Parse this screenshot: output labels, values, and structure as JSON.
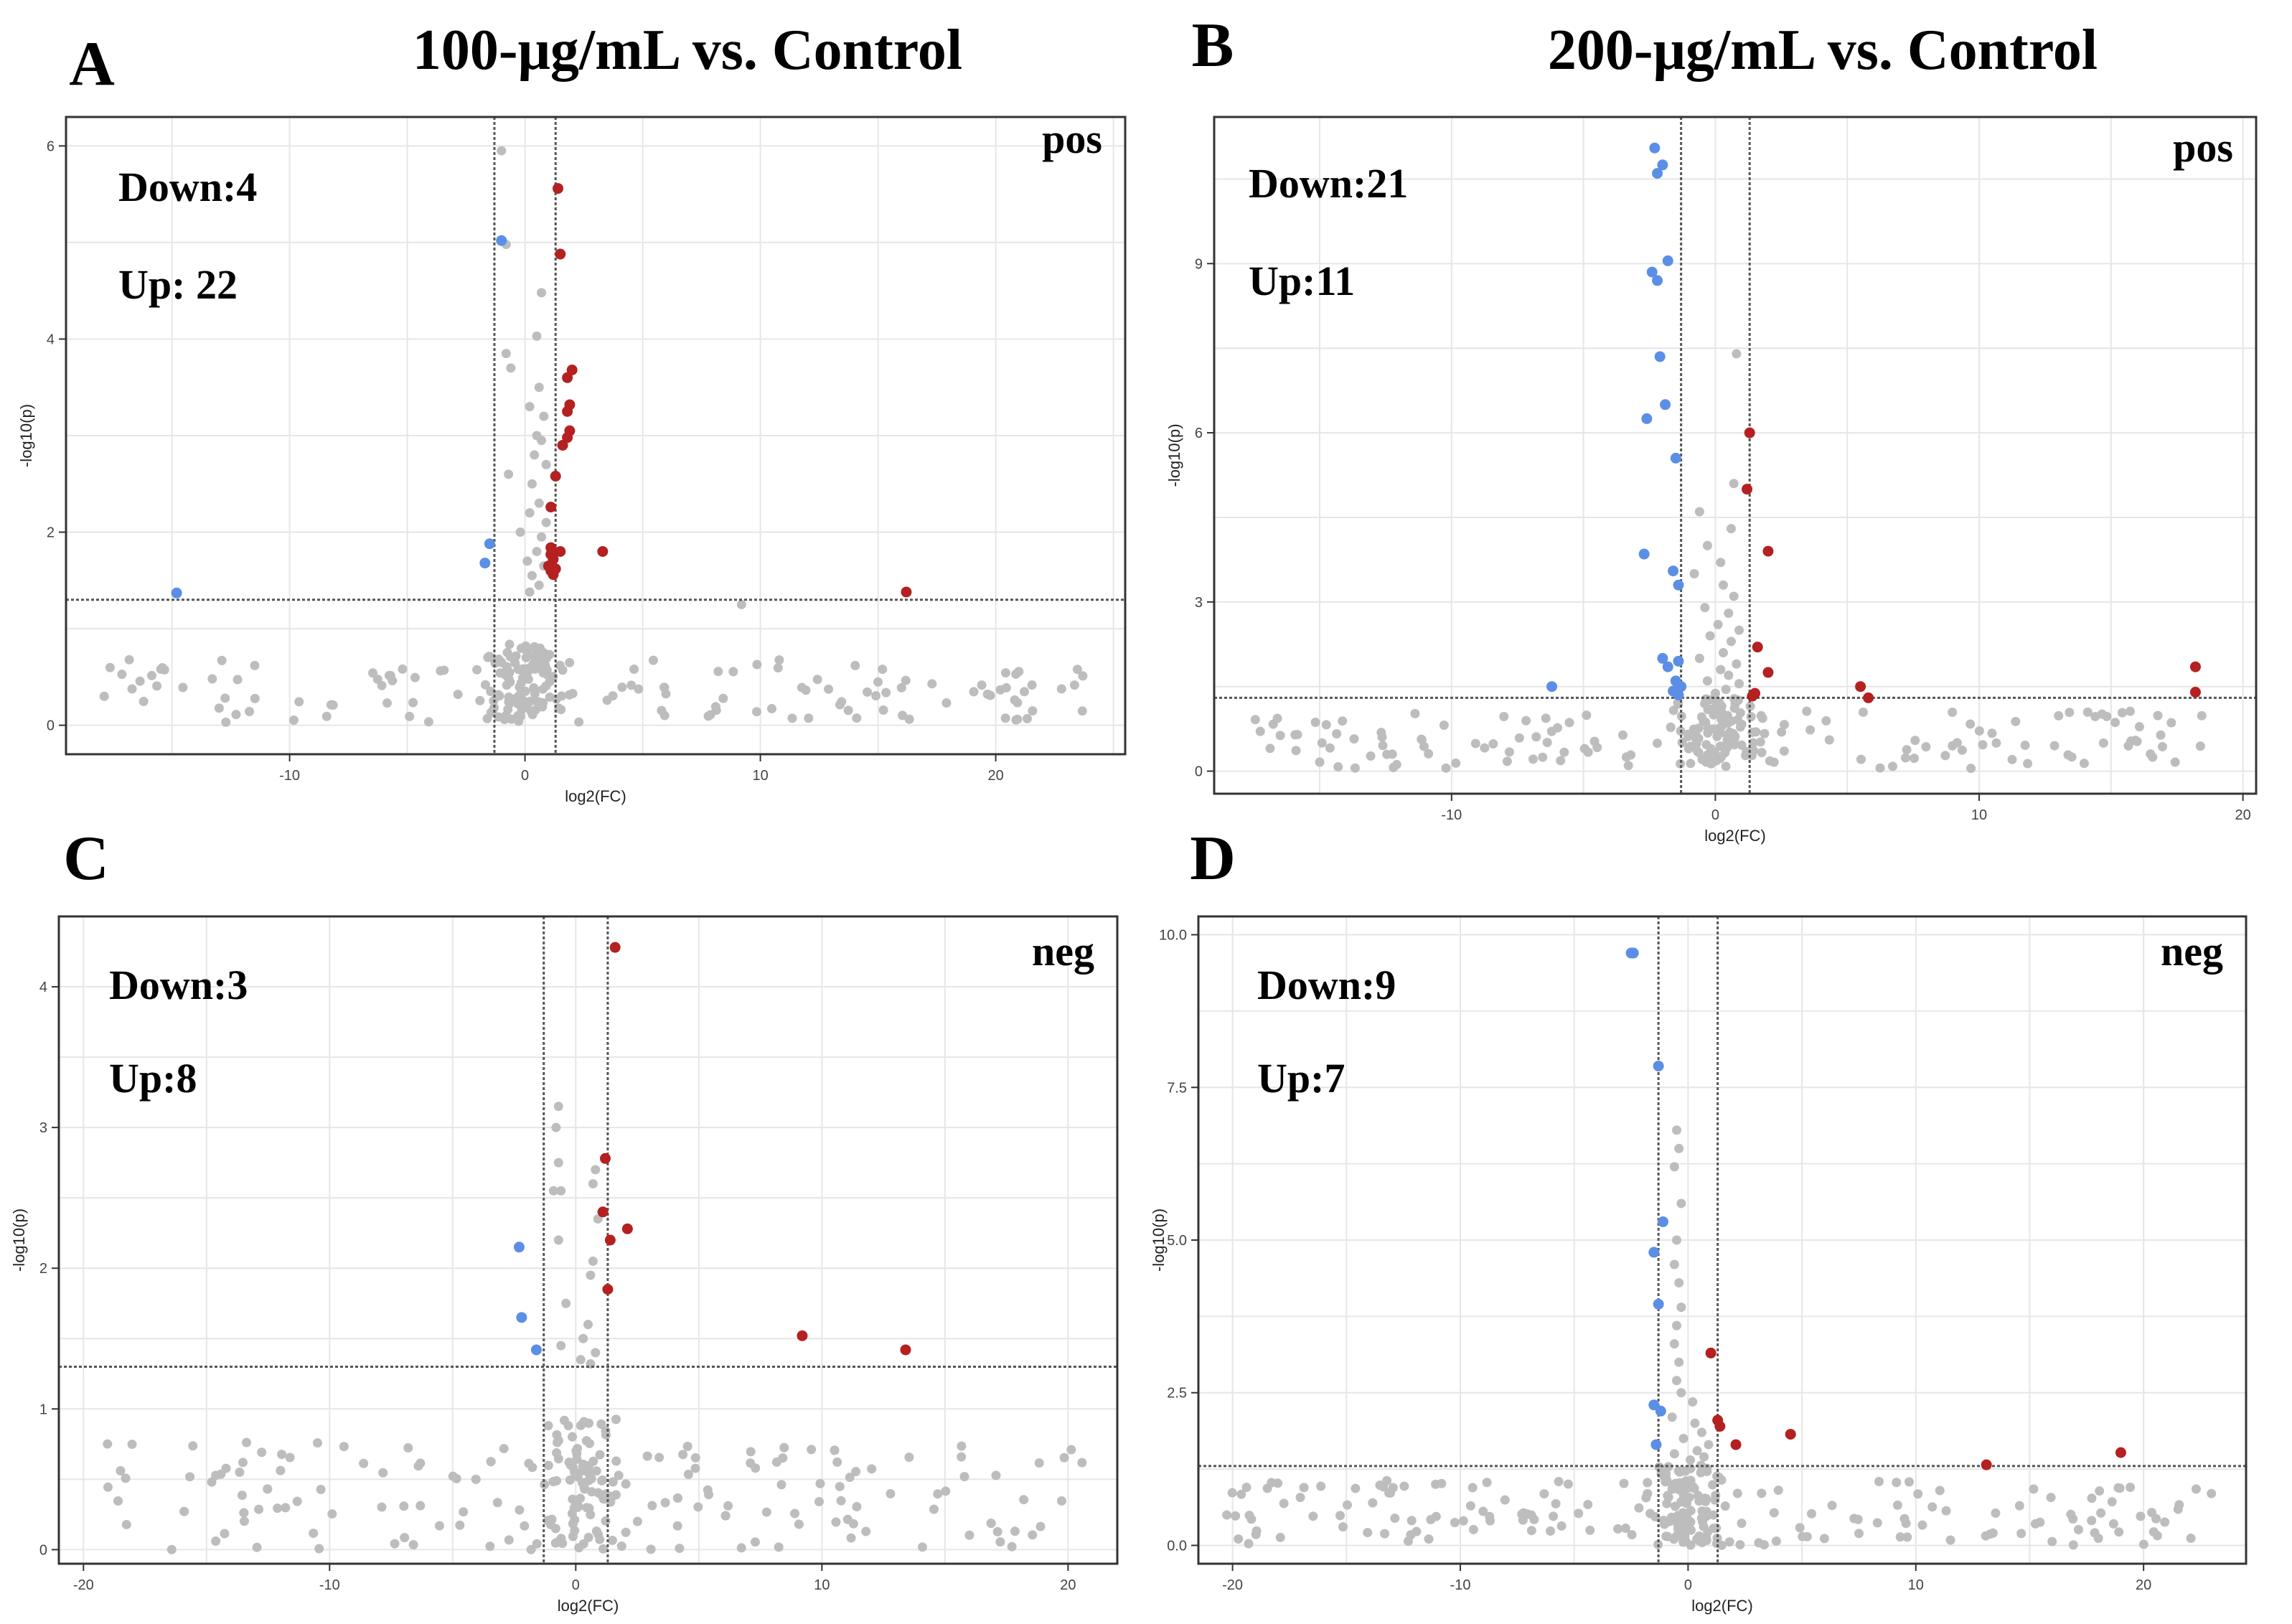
{
  "colors": {
    "down": "#5b8fe6",
    "up": "#b52020",
    "ns": "#bdbdbd",
    "grid": "#e6e6e6",
    "frame": "#333333",
    "threshold": "#555555"
  },
  "chart_data": [
    {
      "type": "scatter",
      "panel_letter": "A",
      "title": "100-μg/mL vs. Control",
      "mode_label": "pos",
      "down_text": "Down:4",
      "up_text": "Up: 22",
      "xlabel": "log2(FC)",
      "ylabel": "-log10(p)",
      "xlim": [
        -19.5,
        25.5
      ],
      "ylim": [
        -0.3,
        6.3
      ],
      "xticks": [
        -10,
        0,
        10,
        20
      ],
      "yticks": [
        0,
        2,
        4,
        6
      ],
      "ytick_labels": [
        "0",
        "2",
        "4",
        "6"
      ],
      "fc_threshold": [
        -1.3,
        1.3
      ],
      "p_threshold": 1.3,
      "ns_count": 230,
      "ns_seed": 11,
      "ns_y_below": [
        0.03,
        0.8
      ],
      "down_points": [
        [
          -14.8,
          1.37
        ],
        [
          -1.0,
          5.02
        ],
        [
          -1.5,
          1.88
        ],
        [
          -1.7,
          1.68
        ]
      ],
      "up_points": [
        [
          1.4,
          5.56
        ],
        [
          1.5,
          4.88
        ],
        [
          2.0,
          3.68
        ],
        [
          1.8,
          3.6
        ],
        [
          1.9,
          3.32
        ],
        [
          1.8,
          3.25
        ],
        [
          1.9,
          3.05
        ],
        [
          1.8,
          2.98
        ],
        [
          1.6,
          2.9
        ],
        [
          1.3,
          2.58
        ],
        [
          1.1,
          2.26
        ],
        [
          1.1,
          1.84
        ],
        [
          1.2,
          1.8
        ],
        [
          1.5,
          1.8
        ],
        [
          1.1,
          1.77
        ],
        [
          1.2,
          1.72
        ],
        [
          1.0,
          1.65
        ],
        [
          1.1,
          1.6
        ],
        [
          1.2,
          1.56
        ],
        [
          1.3,
          1.62
        ],
        [
          3.3,
          1.8
        ],
        [
          16.2,
          1.38
        ]
      ],
      "ns_points_above": [
        [
          -1.0,
          5.95
        ],
        [
          -0.8,
          4.98
        ],
        [
          0.7,
          4.48
        ],
        [
          0.5,
          4.03
        ],
        [
          -0.8,
          3.85
        ],
        [
          -0.6,
          3.7
        ],
        [
          0.6,
          3.5
        ],
        [
          0.2,
          3.3
        ],
        [
          0.8,
          3.2
        ],
        [
          0.5,
          3.0
        ],
        [
          0.7,
          2.95
        ],
        [
          0.4,
          2.8
        ],
        [
          -0.7,
          2.6
        ],
        [
          0.9,
          2.7
        ],
        [
          0.3,
          2.5
        ],
        [
          0.6,
          2.3
        ],
        [
          0.2,
          2.2
        ],
        [
          0.9,
          2.1
        ],
        [
          -0.2,
          2.0
        ],
        [
          0.7,
          1.95
        ],
        [
          0.5,
          1.8
        ],
        [
          0.1,
          1.7
        ],
        [
          0.8,
          1.65
        ],
        [
          0.3,
          1.55
        ],
        [
          0.6,
          1.45
        ],
        [
          0.2,
          1.38
        ],
        [
          9.2,
          1.25
        ]
      ]
    },
    {
      "type": "scatter",
      "panel_letter": "B",
      "title": "200-μg/mL vs. Control",
      "mode_label": "pos",
      "down_text": "Down:21",
      "up_text": "Up:11",
      "xlabel": "log2(FC)",
      "ylabel": "-log10(p)",
      "xlim": [
        -19.0,
        20.5
      ],
      "ylim": [
        -0.4,
        11.6
      ],
      "xticks": [
        -10,
        0,
        10,
        20
      ],
      "yticks": [
        0,
        3,
        6,
        9
      ],
      "ytick_labels": [
        "0",
        "3",
        "6",
        "9"
      ],
      "fc_threshold": [
        -1.3,
        1.3
      ],
      "p_threshold": 1.3,
      "ns_count": 230,
      "ns_seed": 23,
      "ns_y_below": [
        0.05,
        1.25
      ],
      "down_points": [
        [
          -2.3,
          11.05
        ],
        [
          -2.0,
          10.75
        ],
        [
          -2.2,
          10.6
        ],
        [
          -1.8,
          9.05
        ],
        [
          -2.4,
          8.85
        ],
        [
          -2.2,
          8.7
        ],
        [
          -2.1,
          7.35
        ],
        [
          -1.9,
          6.5
        ],
        [
          -2.6,
          6.25
        ],
        [
          -1.5,
          5.55
        ],
        [
          -2.7,
          3.85
        ],
        [
          -1.6,
          3.55
        ],
        [
          -1.4,
          3.3
        ],
        [
          -6.2,
          1.5
        ],
        [
          -2.0,
          2.0
        ],
        [
          -1.4,
          1.95
        ],
        [
          -1.8,
          1.85
        ],
        [
          -1.5,
          1.6
        ],
        [
          -1.3,
          1.5
        ],
        [
          -1.6,
          1.42
        ],
        [
          -1.4,
          1.35
        ]
      ],
      "up_points": [
        [
          1.3,
          6.0
        ],
        [
          1.2,
          5.0
        ],
        [
          2.0,
          3.9
        ],
        [
          1.6,
          2.2
        ],
        [
          2.0,
          1.75
        ],
        [
          1.5,
          1.38
        ],
        [
          5.5,
          1.5
        ],
        [
          5.8,
          1.3
        ],
        [
          18.2,
          1.85
        ],
        [
          18.2,
          1.4
        ],
        [
          1.4,
          1.33
        ]
      ],
      "ns_points_above": [
        [
          0.8,
          7.4
        ],
        [
          0.7,
          5.1
        ],
        [
          -0.6,
          4.6
        ],
        [
          0.6,
          4.3
        ],
        [
          -0.3,
          4.0
        ],
        [
          0.2,
          3.7
        ],
        [
          -0.8,
          3.5
        ],
        [
          0.3,
          3.3
        ],
        [
          0.7,
          3.1
        ],
        [
          -0.4,
          2.9
        ],
        [
          0.5,
          2.8
        ],
        [
          0.1,
          2.6
        ],
        [
          0.9,
          2.5
        ],
        [
          -0.2,
          2.4
        ],
        [
          0.6,
          2.3
        ],
        [
          0.3,
          2.1
        ],
        [
          -0.6,
          2.0
        ],
        [
          0.8,
          1.9
        ],
        [
          0.2,
          1.8
        ],
        [
          0.5,
          1.7
        ],
        [
          -0.3,
          1.6
        ],
        [
          0.9,
          1.55
        ],
        [
          0.4,
          1.45
        ],
        [
          0.0,
          1.38
        ]
      ]
    },
    {
      "type": "scatter",
      "panel_letter": "C",
      "title": "",
      "mode_label": "neg",
      "down_text": "Down:3",
      "up_text": "Up:8",
      "xlabel": "log2(FC)",
      "ylabel": "-log10(p)",
      "xlim": [
        -21.0,
        22.0
      ],
      "ylim": [
        -0.1,
        4.5
      ],
      "xticks": [
        -20,
        -10,
        0,
        10,
        20
      ],
      "yticks": [
        0,
        1,
        2,
        3,
        4
      ],
      "ytick_labels": [
        "0",
        "1",
        "2",
        "3",
        "4"
      ],
      "fc_threshold": [
        -1.3,
        1.3
      ],
      "p_threshold": 1.3,
      "ns_count": 260,
      "ns_seed": 37,
      "ns_y_below": [
        0.0,
        0.9
      ],
      "down_points": [
        [
          -2.3,
          2.15
        ],
        [
          -2.2,
          1.65
        ],
        [
          -1.6,
          1.42
        ]
      ],
      "up_points": [
        [
          1.6,
          4.28
        ],
        [
          1.2,
          2.78
        ],
        [
          1.1,
          2.4
        ],
        [
          2.1,
          2.28
        ],
        [
          1.4,
          2.2
        ],
        [
          1.3,
          1.85
        ],
        [
          9.2,
          1.52
        ],
        [
          13.4,
          1.42
        ]
      ],
      "ns_points_above": [
        [
          -0.7,
          3.15
        ],
        [
          -0.8,
          3.0
        ],
        [
          -0.7,
          2.75
        ],
        [
          0.8,
          2.7
        ],
        [
          0.7,
          2.6
        ],
        [
          -0.9,
          2.55
        ],
        [
          -0.6,
          2.55
        ],
        [
          0.9,
          2.35
        ],
        [
          -0.7,
          2.2
        ],
        [
          0.7,
          2.05
        ],
        [
          0.6,
          1.95
        ],
        [
          -0.4,
          1.75
        ],
        [
          0.5,
          1.6
        ],
        [
          0.3,
          1.5
        ],
        [
          -0.6,
          1.45
        ],
        [
          0.8,
          1.4
        ],
        [
          0.2,
          1.35
        ],
        [
          0.6,
          1.32
        ]
      ]
    },
    {
      "type": "scatter",
      "panel_letter": "D",
      "title": "",
      "mode_label": "neg",
      "down_text": "Down:9",
      "up_text": "Up:7",
      "xlabel": "log2(FC)",
      "ylabel": "-log10(p)",
      "xlim": [
        -21.5,
        24.5
      ],
      "ylim": [
        -0.3,
        10.3
      ],
      "xticks": [
        -20,
        -10,
        0,
        10,
        20
      ],
      "yticks": [
        0,
        2.5,
        5,
        7.5,
        10
      ],
      "ytick_labels": [
        "0.0",
        "2.5",
        "5.0",
        "7.5",
        "10.0"
      ],
      "fc_threshold": [
        -1.3,
        1.3
      ],
      "p_threshold": 1.3,
      "ns_count": 260,
      "ns_seed": 53,
      "ns_y_below": [
        0.0,
        1.25
      ],
      "down_points": [
        [
          -2.5,
          9.7
        ],
        [
          -2.4,
          9.7
        ],
        [
          -1.3,
          7.85
        ],
        [
          -1.1,
          5.3
        ],
        [
          -1.5,
          4.8
        ],
        [
          -1.3,
          3.95
        ],
        [
          -1.5,
          2.3
        ],
        [
          -1.2,
          2.2
        ],
        [
          -1.4,
          1.65
        ]
      ],
      "up_points": [
        [
          1.0,
          3.15
        ],
        [
          1.3,
          2.05
        ],
        [
          1.4,
          1.95
        ],
        [
          2.1,
          1.65
        ],
        [
          4.5,
          1.82
        ],
        [
          13.1,
          1.32
        ],
        [
          19.0,
          1.52
        ]
      ],
      "ns_points_above": [
        [
          -0.5,
          6.8
        ],
        [
          -0.4,
          6.5
        ],
        [
          -0.6,
          6.2
        ],
        [
          -0.3,
          5.6
        ],
        [
          -0.5,
          5.0
        ],
        [
          -0.6,
          4.6
        ],
        [
          -0.4,
          4.3
        ],
        [
          -0.3,
          3.9
        ],
        [
          -0.5,
          3.6
        ],
        [
          -0.6,
          3.3
        ],
        [
          -0.4,
          3.0
        ],
        [
          -0.5,
          2.7
        ],
        [
          -0.3,
          2.5
        ],
        [
          0.2,
          2.35
        ],
        [
          -0.7,
          2.1
        ],
        [
          0.3,
          2.0
        ],
        [
          0.6,
          1.85
        ],
        [
          -0.2,
          1.75
        ],
        [
          0.9,
          1.65
        ],
        [
          0.4,
          1.55
        ],
        [
          -0.6,
          1.5
        ],
        [
          0.7,
          1.45
        ],
        [
          0.1,
          1.4
        ]
      ]
    }
  ]
}
